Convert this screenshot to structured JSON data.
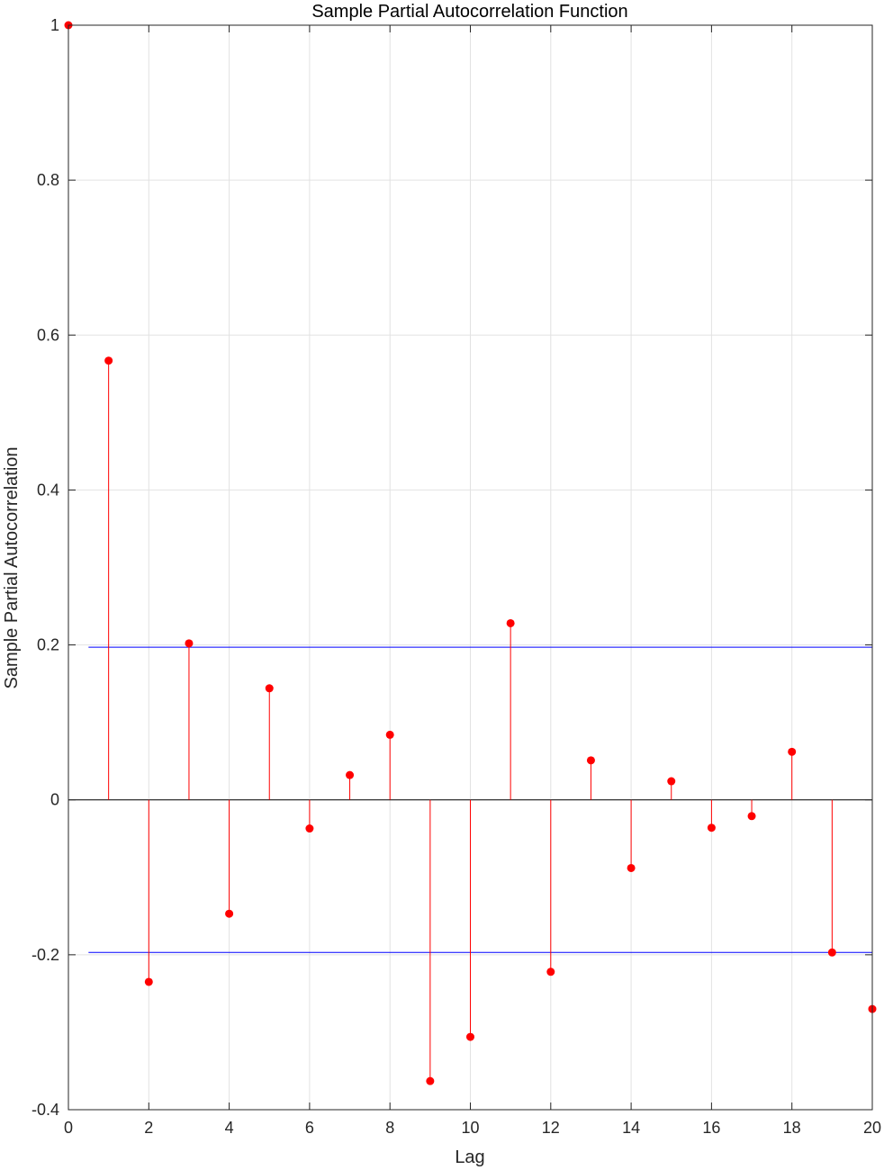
{
  "chart_data": {
    "type": "stem",
    "title": "Sample Partial Autocorrelation Function",
    "xlabel": "Lag",
    "ylabel": "Sample Partial Autocorrelation",
    "xlim": [
      0,
      20
    ],
    "ylim": [
      -0.4,
      1
    ],
    "xticks": [
      "0",
      "2",
      "4",
      "6",
      "8",
      "10",
      "12",
      "14",
      "16",
      "18",
      "20"
    ],
    "yticks": [
      "-0.4",
      "-0.2",
      "0",
      "0.2",
      "0.4",
      "0.6",
      "0.8",
      "1"
    ],
    "grid": true,
    "lags": [
      0,
      1,
      2,
      3,
      4,
      5,
      6,
      7,
      8,
      9,
      10,
      11,
      12,
      13,
      14,
      15,
      16,
      17,
      18,
      19,
      20
    ],
    "values": [
      1.0,
      0.567,
      -0.235,
      0.202,
      -0.147,
      0.144,
      -0.037,
      0.032,
      0.084,
      -0.363,
      -0.306,
      0.228,
      -0.222,
      0.051,
      -0.088,
      0.024,
      -0.036,
      -0.021,
      0.062,
      -0.197,
      -0.27
    ],
    "confidence_bounds": [
      0.197,
      -0.197
    ],
    "colors": {
      "stem": "#ff0000",
      "bounds": "#0000ff",
      "grid": "#e2e2e2",
      "axes": "#262626"
    }
  }
}
